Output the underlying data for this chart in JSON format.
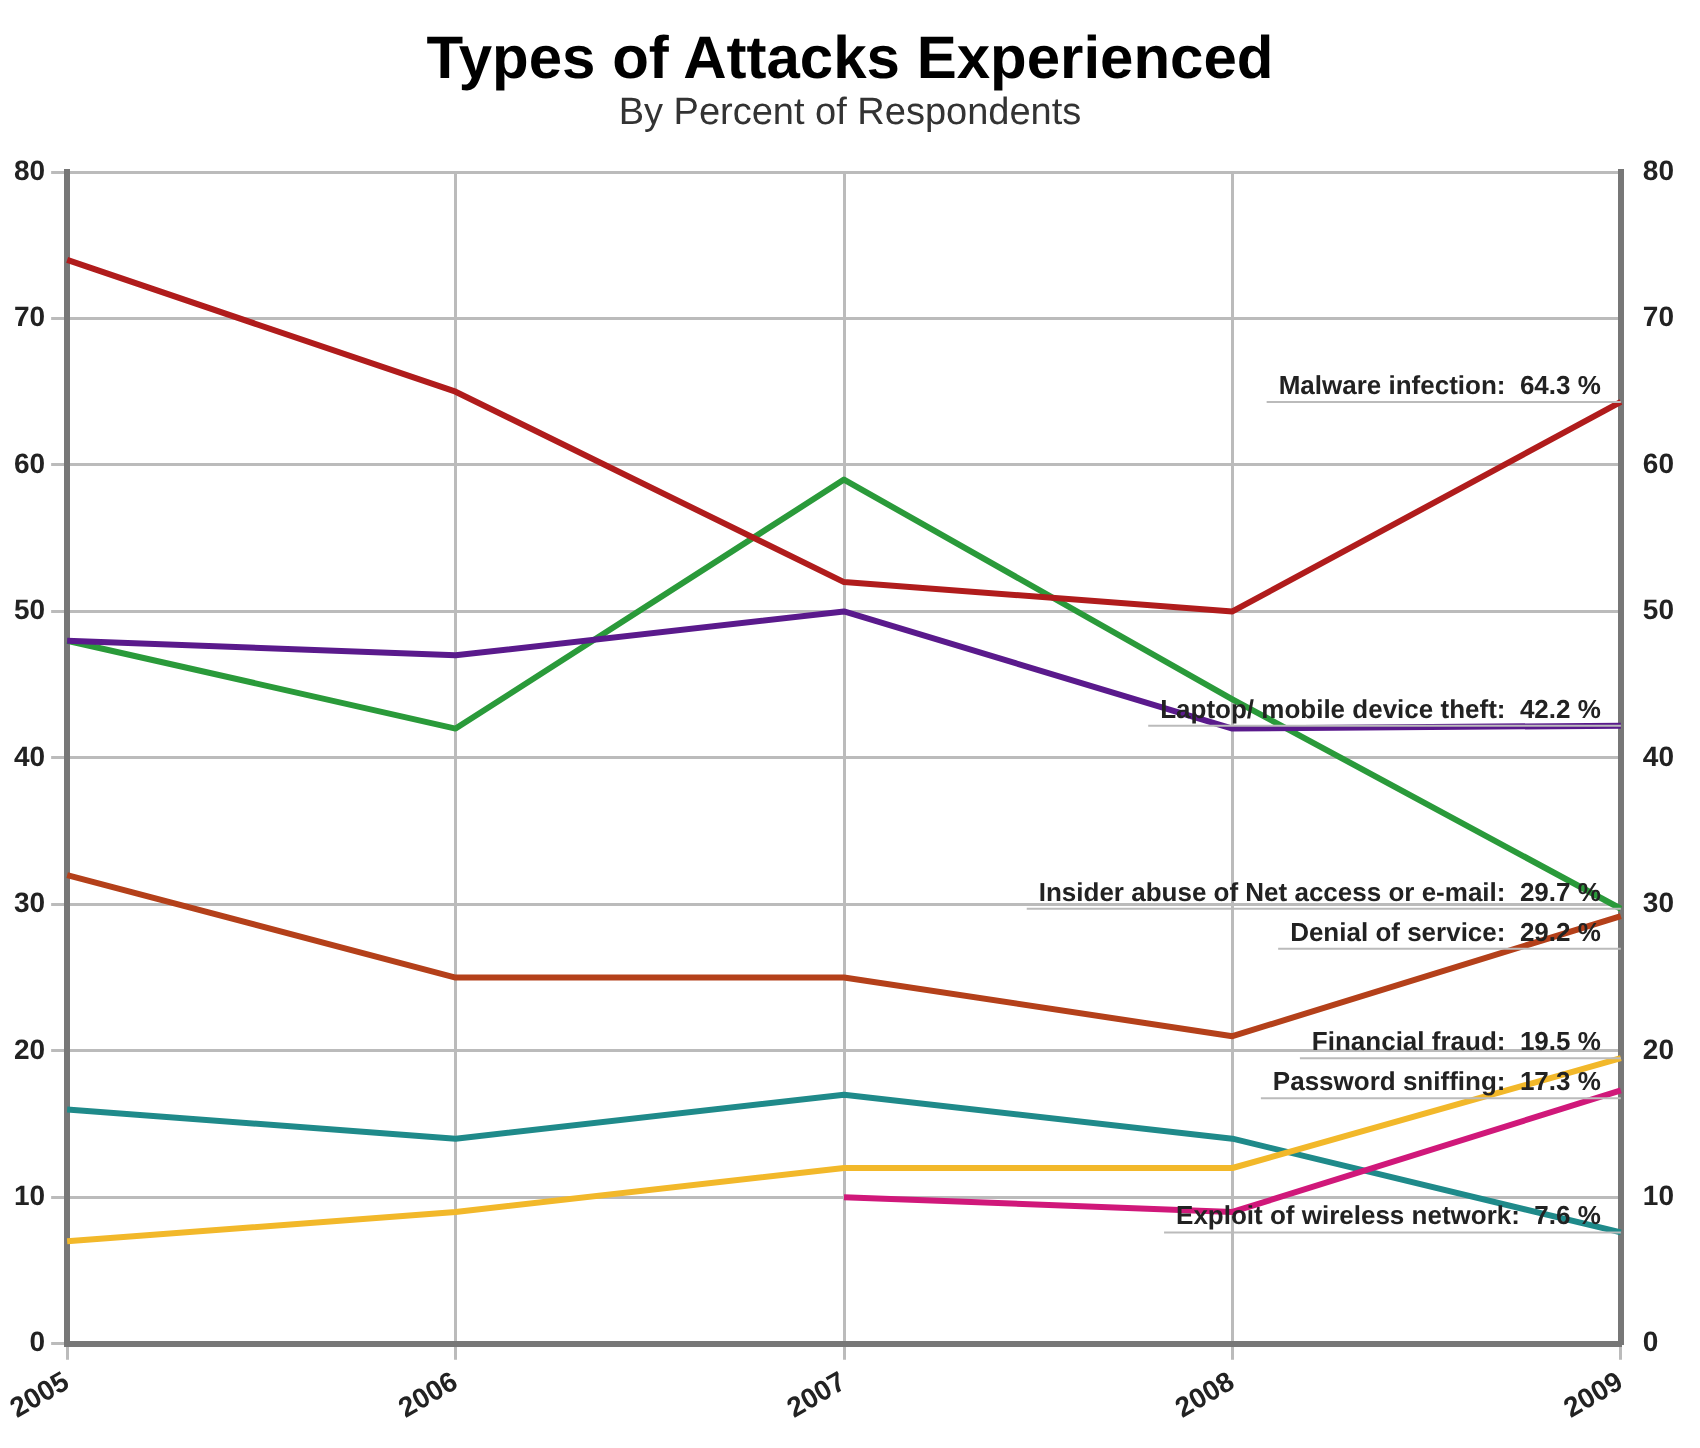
{
  "chart_data": {
    "type": "line",
    "title": "Types of Attacks Experienced",
    "subtitle": "By Percent of Respondents",
    "categories": [
      "2005",
      "2006",
      "2007",
      "2008",
      "2009"
    ],
    "series": [
      {
        "color": "#b01c1c",
        "values": [
          74,
          65,
          52,
          50,
          64.3
        ]
      },
      {
        "color": "#5a1a8c",
        "values": [
          48,
          47,
          50,
          42,
          42.2
        ]
      },
      {
        "color": "#2a9a3a",
        "values": [
          48,
          42,
          59,
          44,
          29.7
        ]
      },
      {
        "color": "#b4401a",
        "values": [
          32,
          25,
          25,
          21,
          29.2
        ]
      },
      {
        "color": "#f2b82a",
        "values": [
          7,
          9,
          12,
          12,
          19.5
        ]
      },
      {
        "color": "#d0187a",
        "values": [
          null,
          null,
          10,
          9,
          17.3
        ]
      },
      {
        "color": "#1f8a8a",
        "values": [
          16,
          14,
          17,
          14,
          7.6
        ]
      }
    ],
    "annotations": [
      {
        "text": "Malware infection:  64.3 %",
        "x": "2009",
        "y": 64.3
      },
      {
        "text": "Laptop/ mobile device theft:  42.2 %",
        "x": "2009",
        "y": 42.2
      },
      {
        "text": "Insider abuse of Net access or e-mail:  29.7 %",
        "x": "2009",
        "y": 29.7
      },
      {
        "text": "Denial of service:  29.2 %",
        "x": "2009",
        "y": 29.2
      },
      {
        "text": "Financial fraud:  19.5 %",
        "x": "2009",
        "y": 19.5
      },
      {
        "text": "Password sniffing:  17.3 %",
        "x": "2009",
        "y": 17.3
      },
      {
        "text": "Exploit of wireless network:  7.6 %",
        "x": "2009",
        "y": 7.6
      }
    ],
    "ylim": [
      0,
      80
    ],
    "yticks": [
      0,
      10,
      20,
      30,
      40,
      50,
      60,
      70,
      80
    ],
    "y2lim": [
      0,
      80
    ],
    "y2ticks": [
      0,
      10,
      20,
      30,
      40,
      50,
      60,
      70,
      80
    ],
    "grid": true,
    "legend": false,
    "marker": "none",
    "line_style": "solid"
  }
}
